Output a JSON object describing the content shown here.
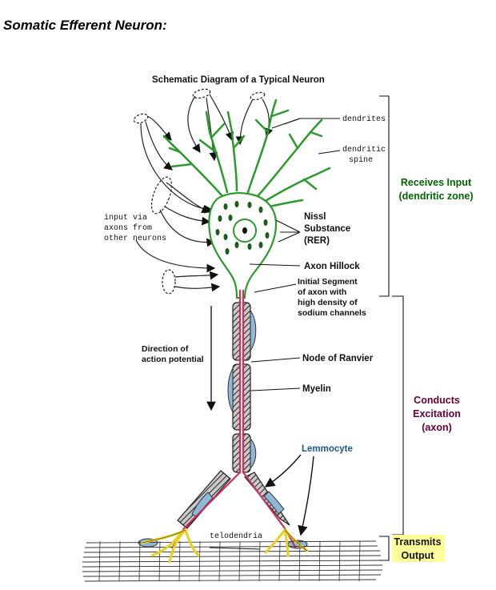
{
  "page_title": "Somatic Efferent Neuron:",
  "diagram": {
    "title": "Schematic Diagram of a Typical Neuron",
    "labels": {
      "dendrites": "dendrites",
      "dendritic_spine_1": "dendritic",
      "dendritic_spine_2": "spine",
      "input_1": "input via",
      "input_2": "axons from",
      "input_3": "other neurons",
      "nissl_1": "Nissl",
      "nissl_2": "Substance",
      "nissl_3": "(RER)",
      "axon_hillock": "Axon Hillock",
      "initial_1": "Initial Segment",
      "initial_2": "of axon with",
      "initial_3": "high density of",
      "initial_4": "sodium channels",
      "direction_1": "Direction of",
      "direction_2": "action potential",
      "node": "Node of Ranvier",
      "myelin": "Myelin",
      "lemmocyte": "Lemmocyte",
      "telodendria": "telodendria"
    },
    "zones": {
      "receives_1": "Receives Input",
      "receives_2": "(dendritic zone)",
      "conducts_1": "Conducts",
      "conducts_2": "Excitation",
      "conducts_3": "(axon)",
      "transmits_1": "Transmits",
      "transmits_2": "Output"
    },
    "colors": {
      "dendritic_zone": "#006600",
      "axon_zone": "#660033",
      "lemmocyte": "#1a5a8a",
      "output": "#e8d020",
      "neuron_outline": "#2a9a2a",
      "axon_core": "#d0305a"
    }
  }
}
